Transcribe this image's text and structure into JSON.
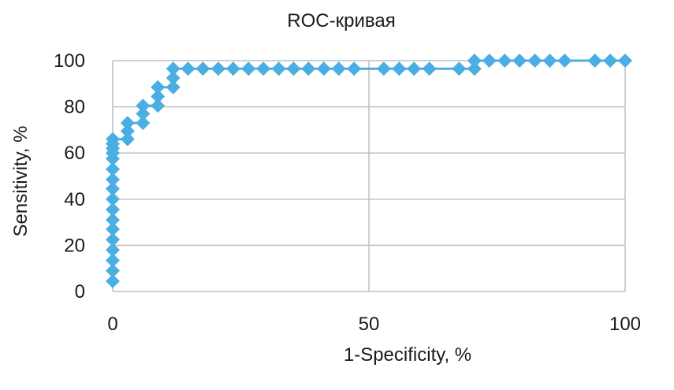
{
  "chart_data": {
    "type": "line",
    "title": "ROC-кривая",
    "xlabel": "1-Specificity, %",
    "ylabel": "Sensitivity, %",
    "xlim": [
      0,
      100
    ],
    "ylim": [
      0,
      100
    ],
    "xticks": [
      0,
      50,
      100
    ],
    "yticks": [
      0,
      20,
      40,
      60,
      80,
      100
    ],
    "grid": true,
    "legend": "none",
    "color": "#4baee3",
    "marker": "diamond",
    "series": [
      {
        "x": [
          0,
          0,
          0,
          0,
          0,
          0,
          0,
          0,
          0,
          0,
          0,
          0,
          0,
          0,
          0,
          0,
          0,
          2.9,
          2.9,
          2.9,
          5.9,
          5.9,
          5.9,
          8.8,
          8.8,
          8.8,
          11.8,
          11.8,
          11.8,
          14.7,
          17.6,
          20.6,
          23.5,
          26.5,
          29.4,
          32.4,
          35.3,
          38.2,
          41.2,
          44.1,
          47.1,
          52.9,
          55.9,
          58.8,
          61.8,
          67.6,
          70.6,
          70.6,
          73.5,
          76.5,
          79.4,
          82.4,
          85.3,
          88.2,
          94.1,
          97.1,
          100
        ],
        "y": [
          4.5,
          9,
          13.5,
          18,
          22.5,
          27,
          31,
          35.5,
          40,
          44.5,
          48.5,
          53,
          57.5,
          60,
          62,
          64,
          66,
          66,
          69.5,
          73,
          73,
          77,
          80.5,
          80.5,
          84.5,
          88.5,
          88.5,
          92.5,
          96.5,
          96.5,
          96.5,
          96.5,
          96.5,
          96.5,
          96.5,
          96.5,
          96.5,
          96.5,
          96.5,
          96.5,
          96.5,
          96.5,
          96.5,
          96.5,
          96.5,
          96.5,
          96.5,
          100,
          100,
          100,
          100,
          100,
          100,
          100,
          100,
          100,
          100
        ]
      }
    ]
  }
}
